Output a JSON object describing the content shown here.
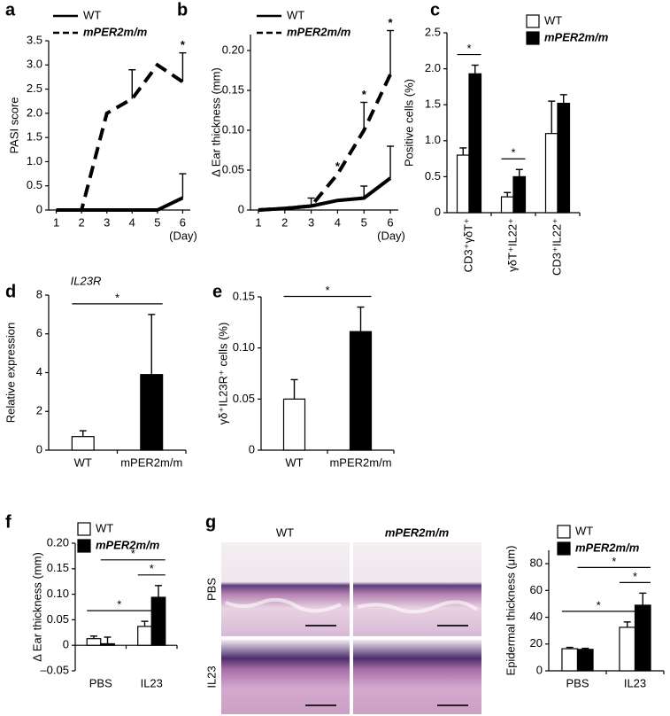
{
  "chart_data": [
    {
      "panel": "a",
      "type": "line",
      "ylabel": "PASI score",
      "xlabel": "(Day)",
      "x": [
        1,
        2,
        3,
        4,
        5,
        6
      ],
      "xlim": [
        0.7,
        6.3
      ],
      "xticks": [
        1,
        2,
        3,
        4,
        5,
        6
      ],
      "ylim": [
        0,
        3.5
      ],
      "yticks": [
        0,
        0.5,
        {
          "value": 1,
          "label": "1.0"
        },
        1.5,
        {
          "value": 2,
          "label": "2.0"
        },
        2.5,
        {
          "value": 3,
          "label": "3.0"
        },
        3.5
      ],
      "series": [
        {
          "name": "WT",
          "color": "#000000",
          "linestyle": "solid",
          "values": [
            0,
            0,
            0,
            0,
            0,
            0.25
          ],
          "errors": [
            null,
            null,
            null,
            null,
            null,
            0.5
          ]
        },
        {
          "name": "mPER2m/m",
          "color": "#000000",
          "linestyle": "dashed",
          "font_style": "italic",
          "values": [
            0,
            0,
            2.0,
            2.3,
            3.0,
            2.65
          ],
          "errors": [
            null,
            null,
            null,
            0.6,
            null,
            0.6
          ]
        }
      ],
      "annotations": [
        {
          "x": 6,
          "text": "*"
        }
      ]
    },
    {
      "panel": "b",
      "type": "line",
      "ylabel": "Δ Ear thickness (mm)",
      "xlabel": "(Day)",
      "x": [
        1,
        2,
        3,
        4,
        5,
        6
      ],
      "xlim": [
        0.7,
        6.3
      ],
      "xticks": [
        1,
        2,
        3,
        4,
        5,
        6
      ],
      "ylim": [
        0,
        0.22
      ],
      "yticks": [
        0,
        0.05,
        {
          "value": 0.1,
          "label": "0.10"
        },
        0.15,
        {
          "value": 0.2,
          "label": "0.20"
        }
      ],
      "series": [
        {
          "name": "WT",
          "color": "#000000",
          "linestyle": "solid",
          "values": [
            0,
            0.002,
            0.005,
            0.012,
            0.015,
            0.04
          ],
          "errors": [
            null,
            null,
            0.01,
            null,
            0.015,
            0.04
          ]
        },
        {
          "name": "mPER2m/m",
          "color": "#000000",
          "linestyle": "dashed",
          "font_style": "italic",
          "values": [
            0,
            0.002,
            0.005,
            0.045,
            0.1,
            0.17
          ],
          "errors": [
            null,
            null,
            null,
            null,
            0.035,
            0.055
          ]
        }
      ],
      "annotations": [
        {
          "x": 4,
          "text": "*"
        },
        {
          "x": 5,
          "text": "*"
        },
        {
          "x": 6,
          "text": "*"
        }
      ]
    },
    {
      "panel": "c",
      "type": "bar",
      "ylabel": "Positive cells (%)",
      "rotate_categories": true,
      "categories": [
        "CD3⁺γδT⁺",
        "γδT⁺IL22⁺",
        "CD3⁺IL22⁺"
      ],
      "ylim": [
        0,
        2.5
      ],
      "yticks": [
        0,
        0.5,
        {
          "value": 1,
          "label": "1.0"
        },
        1.5,
        {
          "value": 2,
          "label": "2.0"
        },
        2.5
      ],
      "series": [
        {
          "name": "WT",
          "color": "#ffffff",
          "values": [
            0.8,
            0.22,
            1.1
          ],
          "errors": [
            0.1,
            0.06,
            0.45
          ]
        },
        {
          "name": "mPER2m/m",
          "color": "#000000",
          "font_style": "italic",
          "values": [
            1.93,
            0.5,
            1.52
          ],
          "errors": [
            0.12,
            0.1,
            0.12
          ]
        }
      ],
      "comparisons": [
        {
          "groups": [
            [
              0,
              0
            ],
            [
              0,
              1
            ]
          ],
          "label": "*"
        },
        {
          "groups": [
            [
              1,
              0
            ],
            [
              1,
              1
            ]
          ],
          "label": "*"
        }
      ]
    },
    {
      "panel": "d",
      "type": "bar",
      "subtitle": "IL23R",
      "ylabel": "Relative expression",
      "categories": [
        "WT",
        "mPER2m/m"
      ],
      "ylim": [
        0,
        8
      ],
      "yticks": [
        0,
        2,
        4,
        6,
        8
      ],
      "series": [
        {
          "colors": [
            "#ffffff",
            "#000000"
          ],
          "values": [
            0.7,
            3.9
          ],
          "errors": [
            0.3,
            3.1
          ]
        }
      ],
      "comparisons": [
        {
          "groups": [
            [
              0,
              0
            ],
            [
              1,
              0
            ]
          ],
          "label": "*"
        }
      ]
    },
    {
      "panel": "e",
      "type": "bar",
      "ylabel": "γδ⁺IL23R⁺ cells (%)",
      "categories": [
        "WT",
        "mPER2m/m"
      ],
      "ylim": [
        0,
        0.15
      ],
      "yticks": [
        0,
        0.05,
        {
          "value": 0.1,
          "label": "0.10"
        },
        0.15
      ],
      "series": [
        {
          "colors": [
            "#ffffff",
            "#000000"
          ],
          "values": [
            0.05,
            0.116
          ],
          "errors": [
            0.019,
            0.024
          ]
        }
      ],
      "comparisons": [
        {
          "groups": [
            [
              0,
              0
            ],
            [
              1,
              0
            ]
          ],
          "label": "*"
        }
      ]
    },
    {
      "panel": "f",
      "type": "bar",
      "ylabel": "Δ Ear thickness (mm)",
      "categories": [
        "PBS",
        "IL23"
      ],
      "ylim": [
        -0.05,
        0.2
      ],
      "yticks": [
        {
          "value": -0.05,
          "label": "–0.05"
        },
        0,
        0.05,
        {
          "value": 0.1,
          "label": "0.10"
        },
        0.15,
        {
          "value": 0.2,
          "label": "0.20"
        }
      ],
      "series": [
        {
          "name": "WT",
          "color": "#ffffff",
          "values": [
            0.013,
            0.037
          ],
          "errors": [
            0.005,
            0.01
          ]
        },
        {
          "name": "mPER2m/m",
          "color": "#000000",
          "font_style": "italic",
          "values": [
            0.003,
            0.094
          ],
          "errors": [
            0.013,
            0.023
          ]
        }
      ],
      "comparisons": [
        {
          "groups": [
            [
              1,
              0
            ],
            [
              1,
              1
            ]
          ],
          "label": "*"
        },
        {
          "groups": [
            [
              0,
              0
            ],
            [
              1,
              0
            ]
          ],
          "label": "*"
        },
        {
          "groups": [
            [
              0,
              1
            ],
            [
              1,
              1
            ]
          ],
          "label": "*"
        }
      ]
    },
    {
      "panel": "g",
      "type": "bar",
      "ylabel": "Epidermal thickness (μm)",
      "image_columns": [
        "WT",
        "mPER2m/m"
      ],
      "image_rows": [
        "PBS",
        "IL23"
      ],
      "categories": [
        "PBS",
        "IL23"
      ],
      "ylim": [
        0,
        90
      ],
      "yticks": [
        0,
        20,
        40,
        60,
        80
      ],
      "series": [
        {
          "name": "WT",
          "color": "#ffffff",
          "values": [
            16.5,
            32.5
          ],
          "errors": [
            1,
            4
          ]
        },
        {
          "name": "mPER2m/m",
          "color": "#000000",
          "font_style": "italic",
          "values": [
            16,
            49
          ],
          "errors": [
            0.8,
            9
          ]
        }
      ],
      "comparisons": [
        {
          "groups": [
            [
              1,
              0
            ],
            [
              1,
              1
            ]
          ],
          "label": "*"
        },
        {
          "groups": [
            [
              0,
              0
            ],
            [
              1,
              0
            ]
          ],
          "label": "*"
        },
        {
          "groups": [
            [
              0,
              1
            ],
            [
              1,
              1
            ]
          ],
          "label": "*"
        }
      ]
    }
  ]
}
